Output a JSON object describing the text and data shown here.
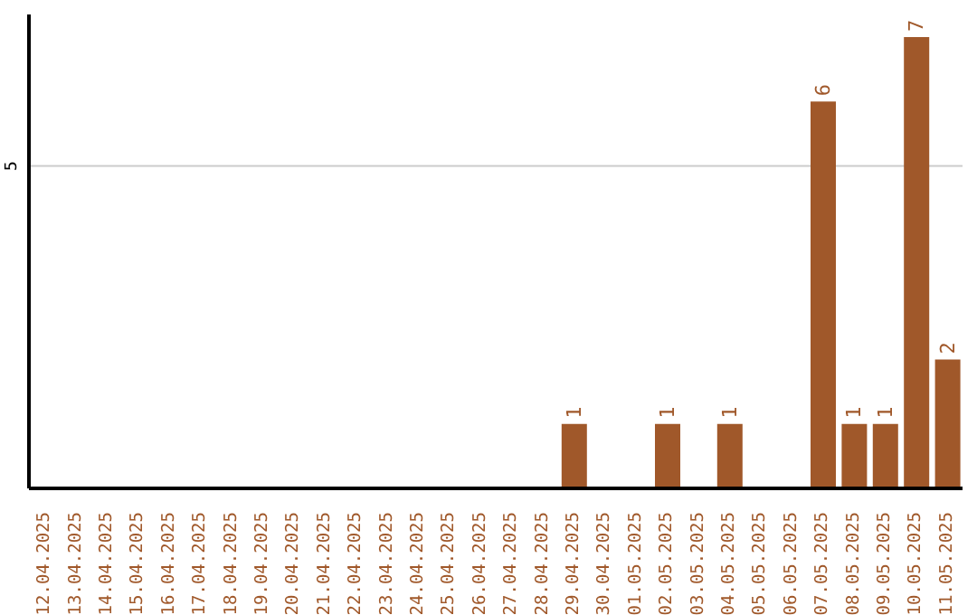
{
  "chart_data": {
    "type": "bar",
    "categories": [
      "12.04.2025",
      "13.04.2025",
      "14.04.2025",
      "15.04.2025",
      "16.04.2025",
      "17.04.2025",
      "18.04.2025",
      "19.04.2025",
      "20.04.2025",
      "21.04.2025",
      "22.04.2025",
      "23.04.2025",
      "24.04.2025",
      "25.04.2025",
      "26.04.2025",
      "27.04.2025",
      "28.04.2025",
      "29.04.2025",
      "30.04.2025",
      "01.05.2025",
      "02.05.2025",
      "03.05.2025",
      "04.05.2025",
      "05.05.2025",
      "06.05.2025",
      "07.05.2025",
      "08.05.2025",
      "09.05.2025",
      "10.05.2025",
      "11.05.2025"
    ],
    "values": [
      null,
      null,
      null,
      null,
      null,
      null,
      null,
      null,
      null,
      null,
      null,
      null,
      null,
      null,
      null,
      null,
      null,
      1,
      null,
      null,
      1,
      null,
      1,
      null,
      null,
      6,
      1,
      1,
      7,
      2
    ],
    "color": "#a0582a",
    "ylim": [
      0,
      7.35
    ],
    "yticks": [
      5
    ],
    "grid": "y",
    "data_labels": true
  }
}
